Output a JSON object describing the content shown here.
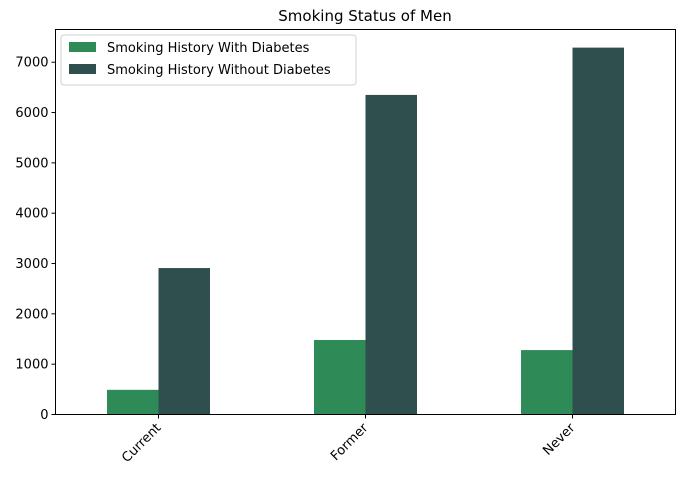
{
  "chart_data": {
    "type": "bar",
    "title": "Smoking Status of Men",
    "xlabel": "",
    "ylabel": "",
    "categories": [
      "Current",
      "Former",
      "Never"
    ],
    "series": [
      {
        "name": "Smoking History With Diabetes",
        "color": "#2e8b57",
        "values": [
          490,
          1480,
          1280
        ]
      },
      {
        "name": "Smoking History Without Diabetes",
        "color": "#2f4f4f",
        "values": [
          2910,
          6350,
          7290
        ]
      }
    ],
    "ylim": [
      0,
      7650
    ],
    "yticks": [
      0,
      1000,
      2000,
      3000,
      4000,
      5000,
      6000,
      7000
    ],
    "legend_position": "top-left",
    "grid": false
  }
}
